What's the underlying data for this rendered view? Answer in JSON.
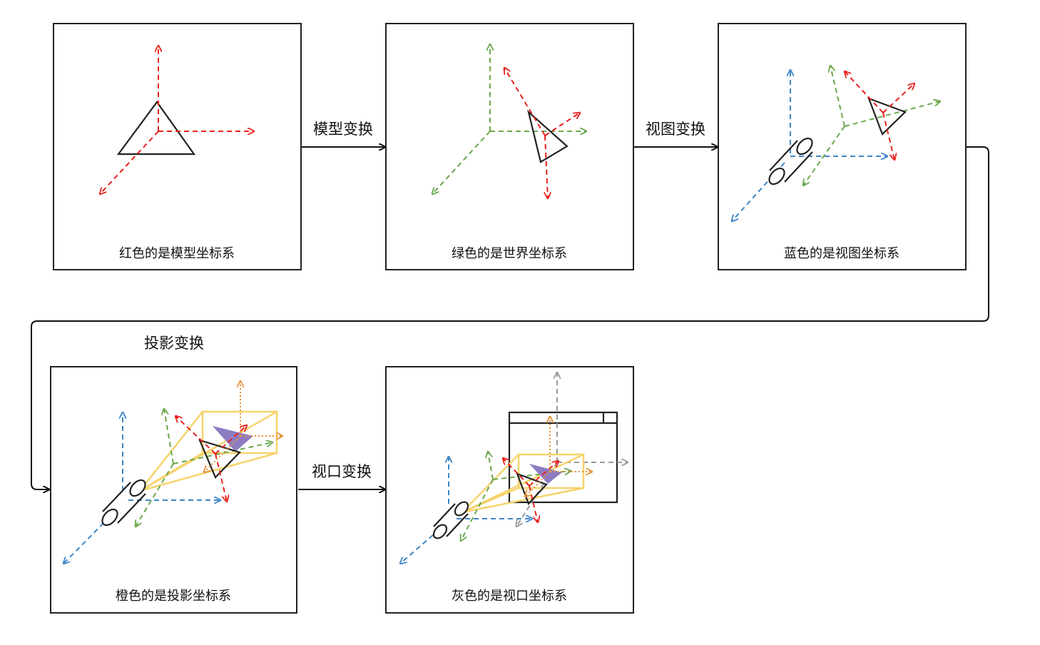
{
  "panels": [
    {
      "caption": "红色的是模型坐标系"
    },
    {
      "caption": "绿色的是世界坐标系"
    },
    {
      "caption": "蓝色的是视图坐标系"
    },
    {
      "caption": "橙色的是投影坐标系"
    },
    {
      "caption": "灰色的是视口坐标系"
    }
  ],
  "transforms": {
    "model": "模型变换",
    "view": "视图变换",
    "projection": "投影变换",
    "viewport": "视口变换"
  },
  "colors": {
    "model_axes": "#e8201c",
    "world_axes": "#6aa84f",
    "view_axes": "#3d85c6",
    "projection_axes": "#e69138",
    "viewport_axes": "#999999",
    "frustum": "#f6d36b",
    "projected_triangle": "#8e7cc3",
    "outline": "#222222"
  }
}
